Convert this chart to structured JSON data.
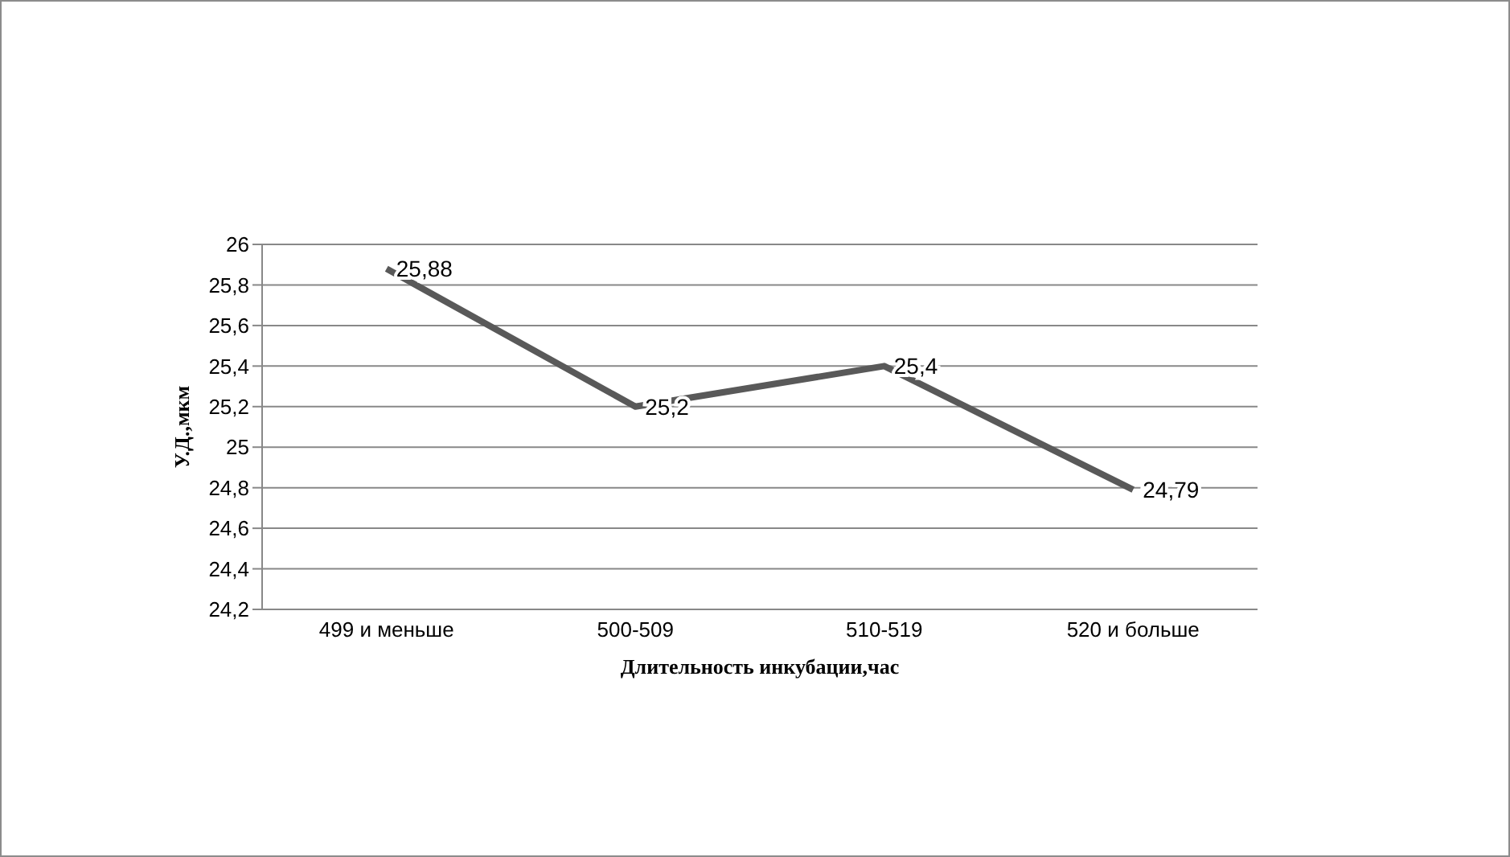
{
  "chart_data": {
    "type": "line",
    "xlabel": "Длительность инкубации,час",
    "ylabel": "У.Д.,мкм",
    "categories": [
      "499 и меньше",
      "500-509",
      "510-519",
      "520 и больше"
    ],
    "series": [
      {
        "color": "#595959",
        "values": [
          25.88,
          25.2,
          25.4,
          24.79
        ],
        "value_labels": [
          "25,88",
          "25,2",
          "25,4",
          "24,79"
        ]
      }
    ],
    "ylim": [
      24.2,
      26
    ],
    "yticks": [
      {
        "value": 24.2,
        "label": "24,2"
      },
      {
        "value": 24.4,
        "label": "24,4"
      },
      {
        "value": 24.6,
        "label": "24,6"
      },
      {
        "value": 24.8,
        "label": "24,8"
      },
      {
        "value": 25,
        "label": "25"
      },
      {
        "value": 25.2,
        "label": "25,2"
      },
      {
        "value": 25.4,
        "label": "25,4"
      },
      {
        "value": 25.6,
        "label": "25,6"
      },
      {
        "value": 25.8,
        "label": "25,8"
      },
      {
        "value": 26,
        "label": "26"
      }
    ],
    "grid": "y",
    "marker": "none",
    "line_style": "solid"
  }
}
